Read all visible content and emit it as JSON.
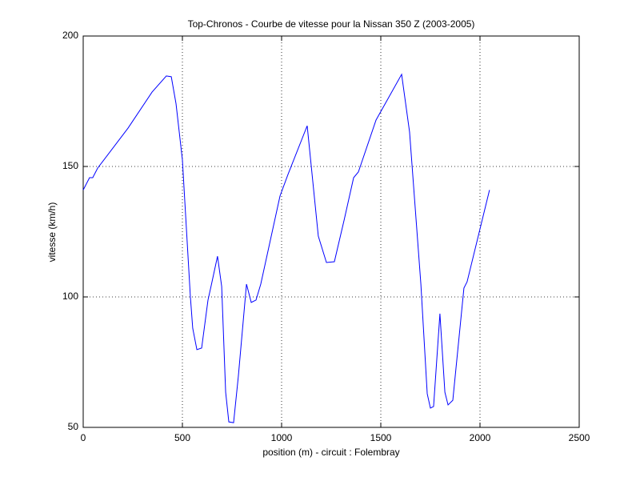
{
  "chart_data": {
    "type": "line",
    "title": "Top-Chronos - Courbe de vitesse pour la Nissan 350 Z (2003-2005)",
    "x_label": "position (m) - circuit : Folembray",
    "y_label": "vitesse (km/h)",
    "x": [
      0,
      32,
      48,
      73,
      226,
      347,
      419,
      444,
      468,
      500,
      540,
      552,
      573,
      597,
      629,
      645,
      677,
      698,
      718,
      734,
      758,
      782,
      823,
      847,
      871,
      895,
      992,
      1032,
      1129,
      1185,
      1226,
      1266,
      1315,
      1363,
      1387,
      1476,
      1605,
      1645,
      1702,
      1734,
      1750,
      1766,
      1798,
      1823,
      1839,
      1863,
      1919,
      1935,
      2048
    ],
    "values": [
      141,
      145.7,
      145.7,
      149.4,
      164.7,
      178.5,
      184.7,
      184.4,
      174,
      152.5,
      100.3,
      88,
      79.8,
      80.4,
      98.8,
      104.3,
      115.6,
      104,
      63.5,
      52.1,
      51.8,
      69.6,
      104.9,
      97.9,
      98.8,
      104.9,
      138.7,
      146.9,
      165.6,
      123.3,
      113.2,
      113.5,
      129.4,
      145.7,
      147.9,
      167.8,
      185.3,
      163.2,
      104.9,
      62.9,
      57.4,
      58,
      93.6,
      63.5,
      58.6,
      60.4,
      103.4,
      105.8,
      141
    ],
    "color": "#0000ff",
    "xlim": [
      0,
      2500
    ],
    "ylim": [
      50,
      200
    ],
    "xticks": [
      0,
      500,
      1000,
      1500,
      2000,
      2500
    ],
    "yticks": [
      50,
      100,
      150,
      200
    ],
    "grid": true
  }
}
